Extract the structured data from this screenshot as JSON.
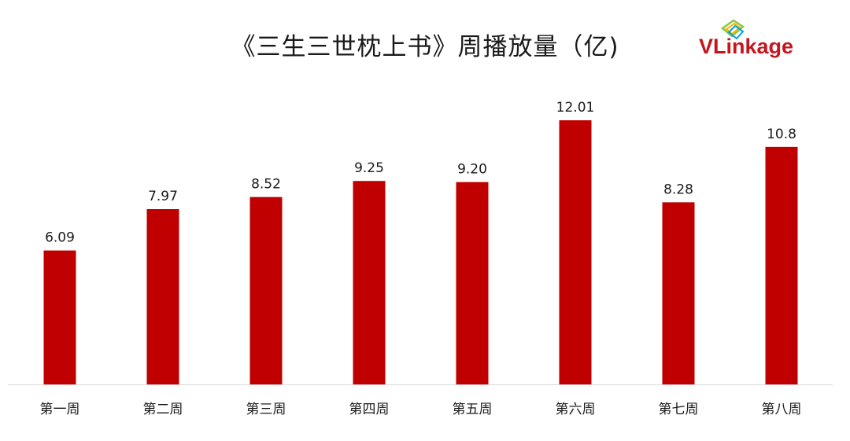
{
  "title": "《三生三世枕上书》周播放量（亿)",
  "logo": {
    "text_strong": "VLink",
    "text_rest": "age"
  },
  "colors": {
    "bar": "#c00000",
    "axis": "#d9d9d9",
    "text": "#1a1a1a",
    "brand": "#c4161c"
  },
  "chart_data": {
    "type": "bar",
    "title": "《三生三世枕上书》周播放量（亿)",
    "categories": [
      "第一周",
      "第二周",
      "第三周",
      "第四周",
      "第五周",
      "第六周",
      "第七周",
      "第八周"
    ],
    "values": [
      6.09,
      7.97,
      8.52,
      9.25,
      9.2,
      12.01,
      8.28,
      10.8
    ],
    "value_labels": [
      "6.09",
      "7.97",
      "8.52",
      "9.25",
      "9.20",
      "12.01",
      "8.28",
      "10.8"
    ],
    "xlabel": "",
    "ylabel": "",
    "ylim": [
      0,
      12.01
    ],
    "grid": false,
    "legend": "none"
  }
}
